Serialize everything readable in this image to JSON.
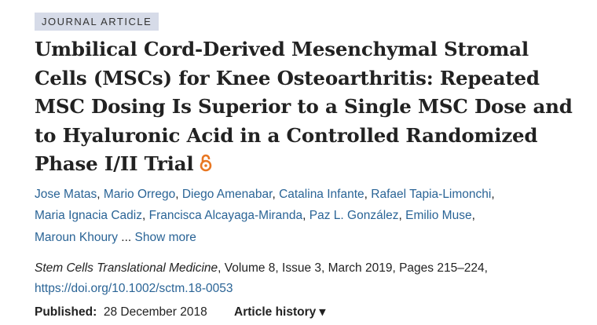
{
  "badge": "JOURNAL ARTICLE",
  "title": "Umbilical Cord-Derived Mesenchymal Stromal Cells (MSCs) for Knee Osteoarthritis: Repeated MSC Dosing Is Superior to a Single MSC Dose and to Hyaluronic Acid in a Controlled Randomized Phase I/II Trial",
  "open_access_icon": "open-lock-icon",
  "accent": "#e87722",
  "link_color": "#2a6496",
  "authors": [
    "Jose Matas",
    "Mario Orrego",
    "Diego Amenabar",
    "Catalina Infante",
    "Rafael Tapia-Limonchi",
    "Maria Ignacia Cadiz",
    "Francisca Alcayaga-Miranda",
    "Paz L. González",
    "Emilio Muse",
    "Maroun Khoury"
  ],
  "ellipsis": " ... ",
  "show_more": "Show more",
  "citation": {
    "journal": "Stem Cells Translational Medicine",
    "details": ", Volume 8, Issue 3, March 2019, Pages 215–224,",
    "doi": "https://doi.org/10.1002/sctm.18-0053"
  },
  "published": {
    "label": "Published:",
    "date": "28 December 2018"
  },
  "article_history": "Article history ▾"
}
